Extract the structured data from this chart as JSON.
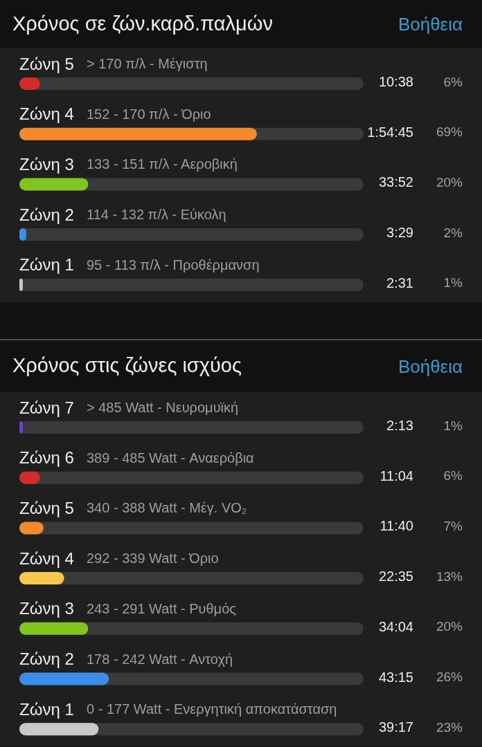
{
  "chart_data": [
    {
      "type": "bar",
      "orientation": "horizontal",
      "title": "Χρόνος σε ζών.καρδ.παλμών",
      "categories": [
        "Ζώνη 5",
        "Ζώνη 4",
        "Ζώνη 3",
        "Ζώνη 2",
        "Ζώνη 1"
      ],
      "values": [
        6,
        69,
        20,
        2,
        1
      ],
      "value_labels": [
        "6%",
        "69%",
        "20%",
        "2%",
        "1%"
      ],
      "colors": [
        "#d62b2b",
        "#f58a2b",
        "#82c41e",
        "#3b8fe9",
        "#c9c9c9"
      ],
      "xlim": [
        0,
        100
      ],
      "tick_labels": "y",
      "annotations": [
        "Βοήθεια",
        "> 170 π/λ - Μέγιστη",
        "152 - 170 π/λ - Όριο",
        "133 - 151 π/λ - Αεροβική",
        "114 - 132 π/λ - Εύκολη",
        "95 - 113 π/λ - Προθέρμανση",
        "10:38",
        "1:54:45",
        "33:52",
        "3:29",
        "2:31"
      ]
    },
    {
      "type": "bar",
      "orientation": "horizontal",
      "title": "Χρόνος στις ζώνες ισχύος",
      "categories": [
        "Ζώνη 7",
        "Ζώνη 6",
        "Ζώνη 5",
        "Ζώνη 4",
        "Ζώνη 3",
        "Ζώνη 2",
        "Ζώνη 1"
      ],
      "values": [
        1,
        6,
        7,
        13,
        20,
        26,
        23
      ],
      "value_labels": [
        "1%",
        "6%",
        "7%",
        "13%",
        "20%",
        "26%",
        "23%"
      ],
      "colors": [
        "#6b3fd6",
        "#d62b2b",
        "#f58a2b",
        "#f9c74f",
        "#82c41e",
        "#3b8fe9",
        "#c9c9c9"
      ],
      "xlim": [
        0,
        100
      ],
      "tick_labels": "y",
      "annotations": [
        "Βοήθεια",
        "> 485 Watt - Νευρομυϊκή",
        "389 - 485 Watt - Αναερόβια",
        "340 - 388 Watt - Μέγ. VO₂",
        "292 - 339 Watt - Όριο",
        "243 - 291 Watt - Ρυθμός",
        "178 - 242 Watt - Αντοχή",
        "0 - 177 Watt - Ενεργητική αποκατάσταση",
        "2:13",
        "11:04",
        "11:40",
        "22:35",
        "34:04",
        "43:15",
        "39:17"
      ]
    }
  ]
}
